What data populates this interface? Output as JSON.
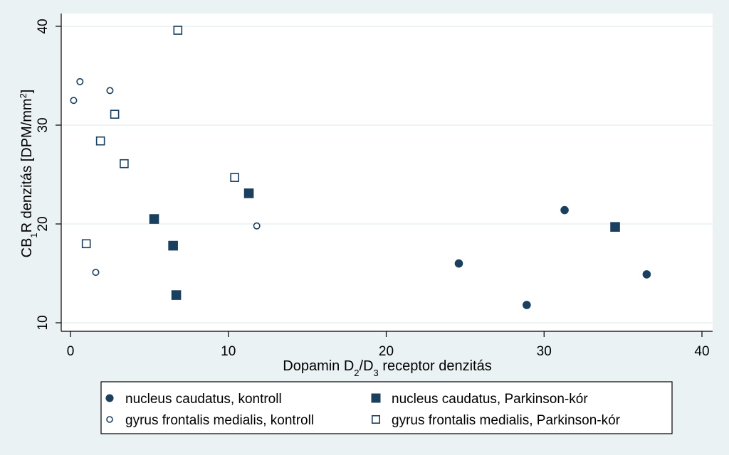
{
  "chart_data": {
    "type": "scatter",
    "title": "",
    "xlabel": "Dopamin D2/D3 receptor denzitás",
    "xlabel_parts": [
      {
        "text": "Dopamin D",
        "sub": false
      },
      {
        "text": "2",
        "sub": true
      },
      {
        "text": "/D",
        "sub": false
      },
      {
        "text": "3",
        "sub": true
      },
      {
        "text": " receptor denzitás",
        "sub": false
      }
    ],
    "ylabel": "CB1R denzitás [DPM/mm2]",
    "ylabel_parts": [
      {
        "text": "CB",
        "sub": false
      },
      {
        "text": "1",
        "sub": true
      },
      {
        "text": "R denzitás [DPM/mm",
        "sub": false
      },
      {
        "text": "2",
        "sup": true
      },
      {
        "text": "]",
        "sub": false
      }
    ],
    "xlim": [
      0,
      40
    ],
    "ylim": [
      10,
      40
    ],
    "xticks": [
      0,
      10,
      20,
      30,
      40
    ],
    "yticks": [
      10,
      20,
      30,
      40
    ],
    "grid": "horizontal",
    "legend_position": "bottom",
    "series": [
      {
        "name": "nucleus caudatus, kontroll",
        "marker": "circle",
        "filled": true,
        "points": [
          [
            24.6,
            16.0
          ],
          [
            28.9,
            11.8
          ],
          [
            31.3,
            21.4
          ],
          [
            36.5,
            14.9
          ]
        ]
      },
      {
        "name": "nucleus caudatus, Parkinson-kór",
        "marker": "square",
        "filled": true,
        "points": [
          [
            5.3,
            20.5
          ],
          [
            6.5,
            17.8
          ],
          [
            6.7,
            12.8
          ],
          [
            11.3,
            23.1
          ],
          [
            34.5,
            19.7
          ]
        ]
      },
      {
        "name": "gyrus frontalis medialis, kontroll",
        "marker": "circle",
        "filled": false,
        "points": [
          [
            0.2,
            32.5
          ],
          [
            0.6,
            34.4
          ],
          [
            1.6,
            15.1
          ],
          [
            2.5,
            33.5
          ],
          [
            11.8,
            19.8
          ]
        ]
      },
      {
        "name": "gyrus frontalis medialis, Parkinson-kór",
        "marker": "square",
        "filled": false,
        "points": [
          [
            1.0,
            18.0
          ],
          [
            1.9,
            28.4
          ],
          [
            2.8,
            31.1
          ],
          [
            3.4,
            26.1
          ],
          [
            6.8,
            39.6
          ],
          [
            10.4,
            24.7
          ]
        ]
      }
    ],
    "colors": {
      "marker": "#1b3f5e",
      "background": "#eaf2f3",
      "plot_area": "#ffffff",
      "grid": "#e4ecee"
    }
  }
}
